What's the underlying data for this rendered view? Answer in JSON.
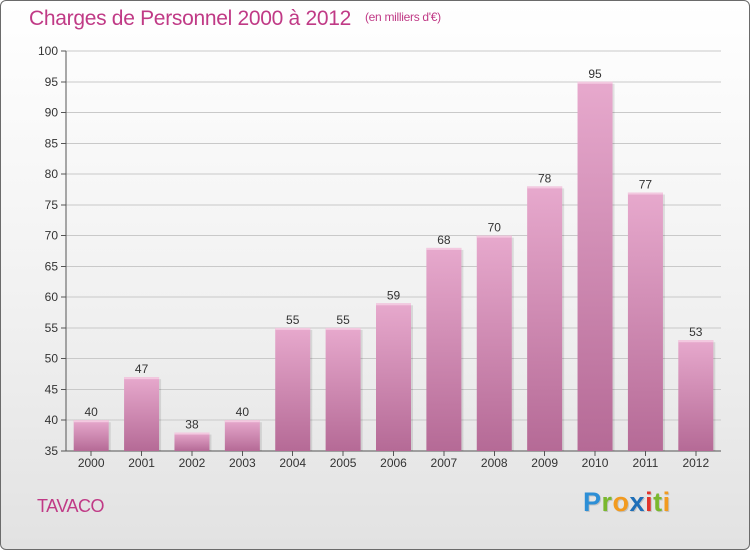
{
  "header": {
    "title": "Charges de Personnel 2000 à 2012",
    "subtitle": "(en milliers d'€)"
  },
  "footer": {
    "commune": "TAVACO",
    "logo_letters": [
      {
        "char": "P",
        "color": "#2d8fd6"
      },
      {
        "char": "r",
        "color": "#7ab82e"
      },
      {
        "char": "o",
        "color": "#f29a1f"
      },
      {
        "char": "x",
        "color": "#1f6fb8"
      },
      {
        "char": "i",
        "color": "#e2342b"
      },
      {
        "char": "t",
        "color": "#7ab82e"
      },
      {
        "char": "i",
        "color": "#f29a1f"
      }
    ]
  },
  "chart_data": {
    "type": "bar",
    "title": "Charges de Personnel 2000 à 2012",
    "subtitle": "(en milliers d'€)",
    "categories": [
      "2000",
      "2001",
      "2002",
      "2003",
      "2004",
      "2005",
      "2006",
      "2007",
      "2008",
      "2009",
      "2010",
      "2011",
      "2012"
    ],
    "values": [
      40,
      47,
      38,
      40,
      55,
      55,
      59,
      68,
      70,
      78,
      95,
      77,
      53
    ],
    "ylim": [
      35,
      100
    ],
    "yticks": [
      35,
      40,
      45,
      50,
      55,
      60,
      65,
      70,
      75,
      80,
      85,
      90,
      95,
      100
    ],
    "grid": true,
    "bar_color": "#d98bb7",
    "xlabel": "",
    "ylabel": ""
  }
}
